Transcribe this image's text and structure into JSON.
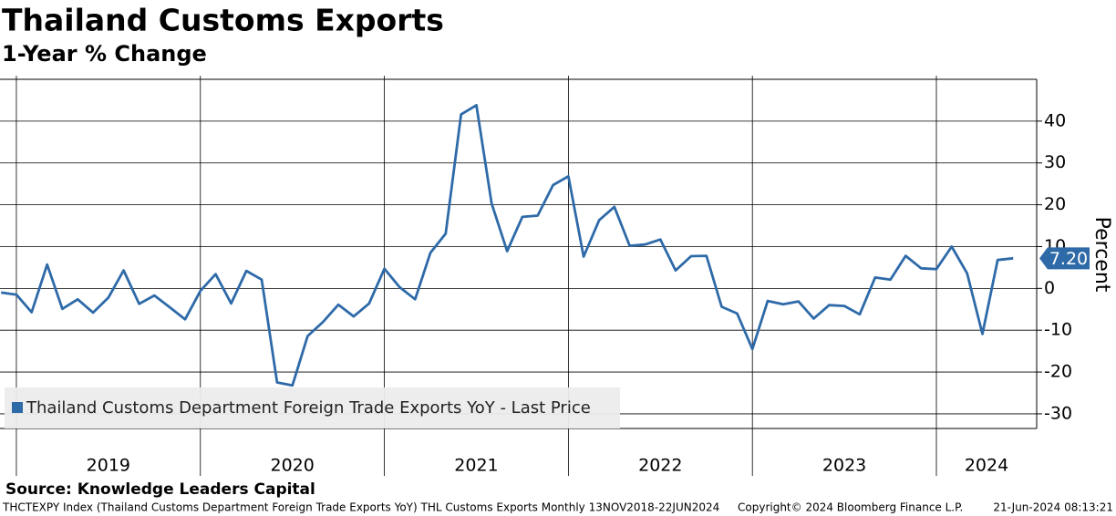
{
  "chart_data": {
    "type": "line",
    "title": "Thailand Customs Exports",
    "subtitle": "1-Year % Change",
    "y_axis_label": "Percent",
    "source": "Source: Knowledge Leaders Capital",
    "footer_left": "THCTEXPY Index (Thailand Customs Department Foreign Trade Exports YoY) THL Customs Exports  Monthly 13NOV2018-22JUN2024",
    "footer_center": "Copyright© 2024 Bloomberg Finance L.P.",
    "footer_right": "21-Jun-2024 08:13:21",
    "x": [
      2018.917,
      2019.0,
      2019.083,
      2019.167,
      2019.25,
      2019.333,
      2019.417,
      2019.5,
      2019.583,
      2019.667,
      2019.75,
      2019.833,
      2019.917,
      2020.0,
      2020.083,
      2020.167,
      2020.25,
      2020.333,
      2020.417,
      2020.5,
      2020.583,
      2020.667,
      2020.75,
      2020.833,
      2020.917,
      2021.0,
      2021.083,
      2021.167,
      2021.25,
      2021.333,
      2021.417,
      2021.5,
      2021.583,
      2021.667,
      2021.75,
      2021.833,
      2021.917,
      2022.0,
      2022.083,
      2022.167,
      2022.25,
      2022.333,
      2022.417,
      2022.5,
      2022.583,
      2022.667,
      2022.75,
      2022.833,
      2022.917,
      2023.0,
      2023.083,
      2023.167,
      2023.25,
      2023.333,
      2023.417,
      2023.5,
      2023.583,
      2023.667,
      2023.75,
      2023.833,
      2023.917,
      2024.0,
      2024.083,
      2024.167,
      2024.25,
      2024.333,
      2024.417
    ],
    "series": [
      {
        "name": "Thailand Customs Department Foreign Trade Exports YoY - Last Price",
        "color": "#2e6aa8",
        "values": [
          -1.0,
          -1.5,
          -5.7,
          5.7,
          -4.9,
          -2.6,
          -5.8,
          -2.2,
          4.3,
          -3.7,
          -1.7,
          -4.5,
          -7.4,
          -0.6,
          3.4,
          -3.6,
          4.2,
          2.1,
          -22.5,
          -23.2,
          -11.4,
          -8.0,
          -3.9,
          -6.7,
          -3.6,
          4.7,
          0.3,
          -2.6,
          8.5,
          13.1,
          41.6,
          43.8,
          20.3,
          8.9,
          17.1,
          17.4,
          24.7,
          26.8,
          7.6,
          16.3,
          19.5,
          10.2,
          10.5,
          11.7,
          4.3,
          7.7,
          7.8,
          -4.4,
          -6.0,
          -14.5,
          -3.0,
          -3.8,
          -3.1,
          -7.2,
          -4.0,
          -4.2,
          -6.2,
          2.6,
          2.1,
          7.8,
          4.8,
          4.6,
          10.0,
          3.6,
          -10.9,
          6.8,
          7.2
        ],
        "value_labels": [
          null,
          null,
          null,
          null,
          null,
          null,
          null,
          null,
          null,
          null,
          null,
          null,
          null,
          null,
          null,
          null,
          null,
          null,
          null,
          null,
          null,
          null,
          null,
          null,
          null,
          null,
          null,
          null,
          null,
          null,
          null,
          null,
          null,
          null,
          null,
          null,
          null,
          null,
          null,
          null,
          null,
          null,
          null,
          null,
          null,
          null,
          null,
          null,
          null,
          null,
          null,
          null,
          null,
          null,
          null,
          null,
          null,
          null,
          null,
          null,
          null,
          null,
          null,
          null,
          null,
          null,
          "7.20"
        ]
      }
    ],
    "xlim": [
      2018.911,
      2024.545
    ],
    "xticks": [
      2019,
      2020,
      2021,
      2022,
      2023,
      2024
    ],
    "ylim": [
      -33.5,
      50
    ],
    "yticks": [
      -30,
      -20,
      -10,
      0,
      10,
      20,
      30,
      40
    ],
    "grid": true,
    "legend": "lower left"
  }
}
